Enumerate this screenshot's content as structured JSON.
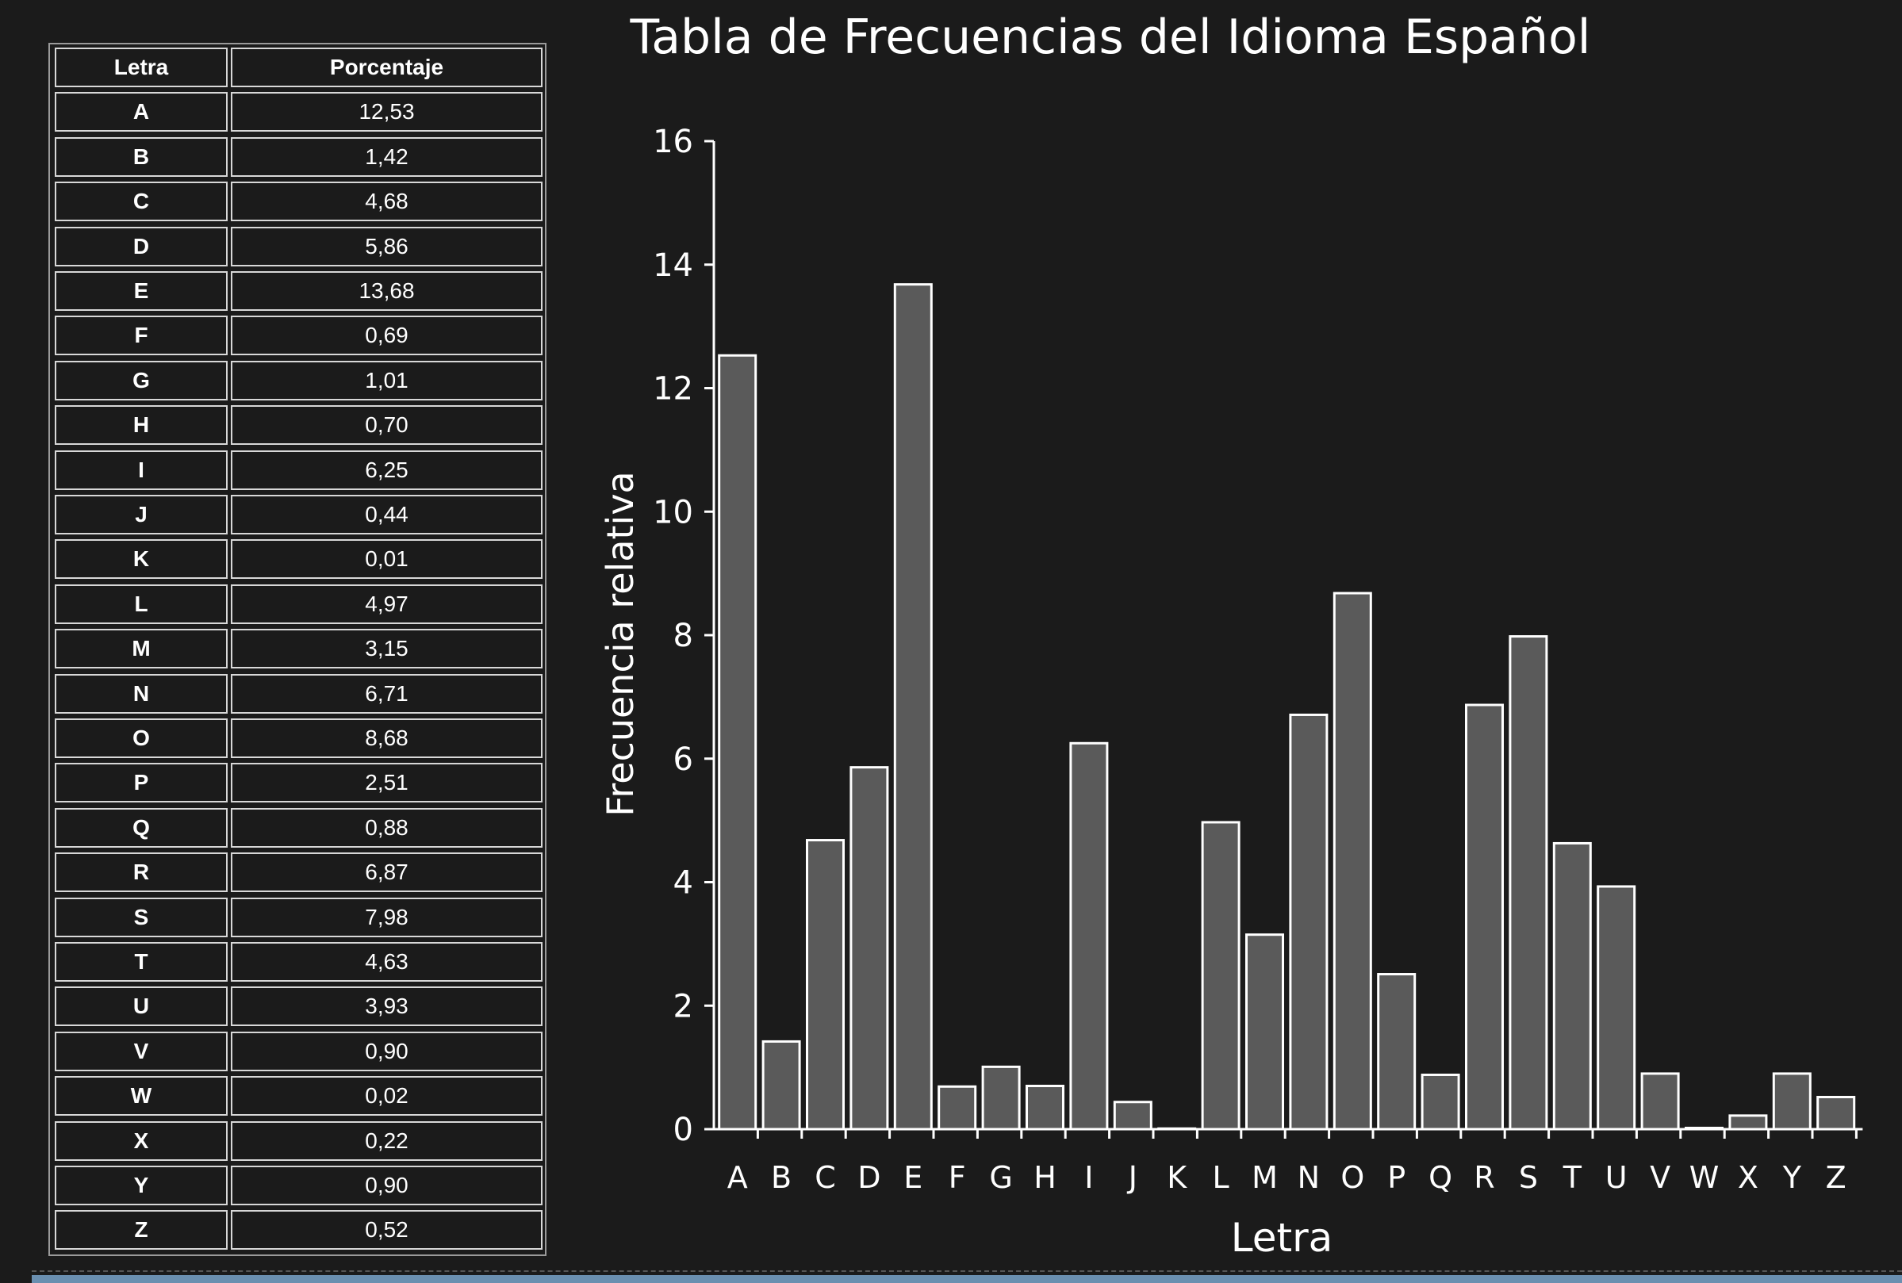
{
  "table": {
    "header_letter": "Letra",
    "header_percent": "Porcentaje",
    "rows": [
      {
        "letter": "A",
        "value": "12,53"
      },
      {
        "letter": "B",
        "value": "1,42"
      },
      {
        "letter": "C",
        "value": "4,68"
      },
      {
        "letter": "D",
        "value": "5,86"
      },
      {
        "letter": "E",
        "value": "13,68"
      },
      {
        "letter": "F",
        "value": "0,69"
      },
      {
        "letter": "G",
        "value": "1,01"
      },
      {
        "letter": "H",
        "value": "0,70"
      },
      {
        "letter": "I",
        "value": "6,25"
      },
      {
        "letter": "J",
        "value": "0,44"
      },
      {
        "letter": "K",
        "value": "0,01"
      },
      {
        "letter": "L",
        "value": "4,97"
      },
      {
        "letter": "M",
        "value": "3,15"
      },
      {
        "letter": "N",
        "value": "6,71"
      },
      {
        "letter": "O",
        "value": "8,68"
      },
      {
        "letter": "P",
        "value": "2,51"
      },
      {
        "letter": "Q",
        "value": "0,88"
      },
      {
        "letter": "R",
        "value": "6,87"
      },
      {
        "letter": "S",
        "value": "7,98"
      },
      {
        "letter": "T",
        "value": "4,63"
      },
      {
        "letter": "U",
        "value": "3,93"
      },
      {
        "letter": "V",
        "value": "0,90"
      },
      {
        "letter": "W",
        "value": "0,02"
      },
      {
        "letter": "X",
        "value": "0,22"
      },
      {
        "letter": "Y",
        "value": "0,90"
      },
      {
        "letter": "Z",
        "value": "0,52"
      }
    ]
  },
  "chart_data": {
    "type": "bar",
    "title": "Tabla de Frecuencias del Idioma Español",
    "xlabel": "Letra",
    "ylabel": "Frecuencia relativa",
    "ylim": [
      0,
      16
    ],
    "yticks": [
      0,
      2,
      4,
      6,
      8,
      10,
      12,
      14,
      16
    ],
    "grid": false,
    "categories": [
      "A",
      "B",
      "C",
      "D",
      "E",
      "F",
      "G",
      "H",
      "I",
      "J",
      "K",
      "L",
      "M",
      "N",
      "O",
      "P",
      "Q",
      "R",
      "S",
      "T",
      "U",
      "V",
      "W",
      "X",
      "Y",
      "Z"
    ],
    "values": [
      12.53,
      1.42,
      4.68,
      5.86,
      13.68,
      0.69,
      1.01,
      0.7,
      6.25,
      0.44,
      0.01,
      4.97,
      3.15,
      6.71,
      8.68,
      2.51,
      0.88,
      6.87,
      7.98,
      4.63,
      3.93,
      0.9,
      0.02,
      0.22,
      0.9,
      0.52
    ],
    "colors": {
      "bar_fill": "#5a5a5a",
      "bar_stroke": "#ffffff",
      "axis": "#ffffff",
      "text": "#ffffff",
      "background": "#1b1b1b"
    }
  }
}
